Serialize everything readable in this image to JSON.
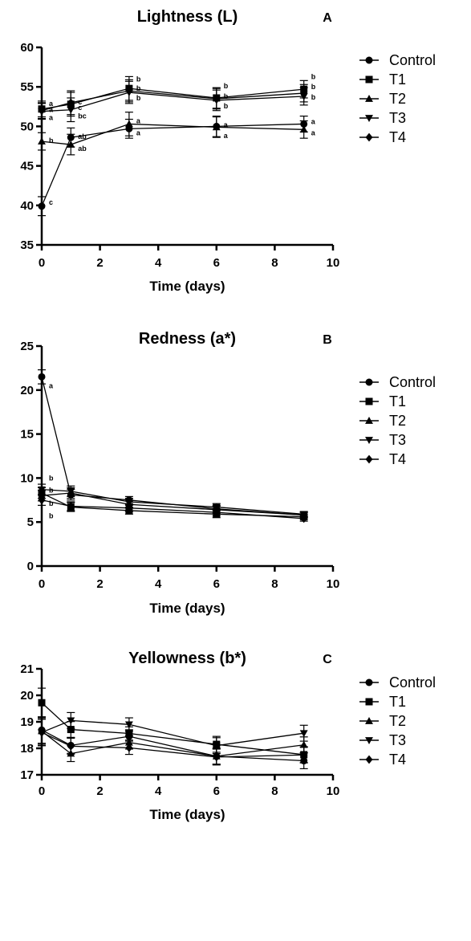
{
  "chart_data": [
    {
      "type": "line",
      "panel": "A",
      "title": "Lightness (L)",
      "xlabel": "Time (days)",
      "ylabel": "",
      "xlim": [
        0,
        10
      ],
      "ylim": [
        35,
        60
      ],
      "xticks": [
        0,
        2,
        4,
        6,
        8,
        10
      ],
      "yticks": [
        35,
        40,
        45,
        50,
        55,
        60
      ],
      "grid": false,
      "legend_position": "right",
      "x": [
        0,
        1,
        3,
        6,
        9
      ],
      "series": [
        {
          "name": "Control",
          "marker": "circle",
          "values": [
            39.9,
            48.6,
            49.7,
            50.0,
            50.3
          ],
          "errors": [
            1.2,
            1.2,
            1.2,
            1.3,
            1.0
          ]
        },
        {
          "name": "T1",
          "marker": "square",
          "values": [
            52.2,
            52.8,
            54.8,
            53.6,
            54.7
          ],
          "errors": [
            1.0,
            1.5,
            1.5,
            1.3,
            1.1
          ]
        },
        {
          "name": "T2",
          "marker": "triangle-up",
          "values": [
            48.1,
            47.7,
            50.3,
            49.9,
            49.6
          ],
          "errors": [
            1.1,
            1.3,
            1.5,
            1.3,
            1.1
          ]
        },
        {
          "name": "T3",
          "marker": "triangle-down",
          "values": [
            51.9,
            52.1,
            54.3,
            53.3,
            53.8
          ],
          "errors": [
            1.0,
            1.5,
            1.4,
            1.3,
            1.1
          ]
        },
        {
          "name": "T4",
          "marker": "diamond",
          "values": [
            52.0,
            53.0,
            54.5,
            53.5,
            54.2
          ],
          "errors": [
            1.0,
            1.5,
            1.4,
            1.3,
            1.1
          ]
        }
      ],
      "annotations": [
        {
          "text": "a",
          "x": 0,
          "y": 52.9
        },
        {
          "text": "a",
          "x": 0,
          "y": 52.1
        },
        {
          "text": "a",
          "x": 0,
          "y": 51.1
        },
        {
          "text": "b",
          "x": 0,
          "y": 48.2
        },
        {
          "text": "c",
          "x": 0,
          "y": 40.4
        },
        {
          "text": "c",
          "x": 1,
          "y": 53.1
        },
        {
          "text": "c",
          "x": 1,
          "y": 52.4
        },
        {
          "text": "bc",
          "x": 1,
          "y": 51.3
        },
        {
          "text": "ab",
          "x": 1,
          "y": 48.7
        },
        {
          "text": "ab",
          "x": 1,
          "y": 47.2
        },
        {
          "text": "b",
          "x": 3,
          "y": 56.0
        },
        {
          "text": "b",
          "x": 3,
          "y": 54.8
        },
        {
          "text": "b",
          "x": 3,
          "y": 53.6
        },
        {
          "text": "a",
          "x": 3,
          "y": 50.7
        },
        {
          "text": "a",
          "x": 3,
          "y": 49.2
        },
        {
          "text": "b",
          "x": 6,
          "y": 55.1
        },
        {
          "text": "b",
          "x": 6,
          "y": 53.8
        },
        {
          "text": "b",
          "x": 6,
          "y": 52.6
        },
        {
          "text": "a",
          "x": 6,
          "y": 50.2
        },
        {
          "text": "a",
          "x": 6,
          "y": 48.8
        },
        {
          "text": "b",
          "x": 9,
          "y": 56.3
        },
        {
          "text": "b",
          "x": 9,
          "y": 55.0
        },
        {
          "text": "b",
          "x": 9,
          "y": 53.7
        },
        {
          "text": "a",
          "x": 9,
          "y": 50.6
        },
        {
          "text": "a",
          "x": 9,
          "y": 49.2
        }
      ]
    },
    {
      "type": "line",
      "panel": "B",
      "title": "Redness (a*)",
      "xlabel": "Time (days)",
      "ylabel": "",
      "xlim": [
        0,
        10
      ],
      "ylim": [
        0,
        25
      ],
      "xticks": [
        0,
        2,
        4,
        6,
        8,
        10
      ],
      "yticks": [
        0,
        5,
        10,
        15,
        20,
        25
      ],
      "grid": false,
      "legend_position": "right",
      "x": [
        0,
        1,
        3,
        6,
        9
      ],
      "series": [
        {
          "name": "Control",
          "marker": "circle",
          "values": [
            21.5,
            8.1,
            7.5,
            6.5,
            5.8
          ],
          "errors": [
            0.8,
            0.6,
            0.4,
            0.4,
            0.3
          ]
        },
        {
          "name": "T1",
          "marker": "square",
          "values": [
            8.3,
            6.7,
            6.3,
            5.9,
            5.6
          ],
          "errors": [
            0.6,
            0.5,
            0.4,
            0.4,
            0.3
          ]
        },
        {
          "name": "T2",
          "marker": "triangle-up",
          "values": [
            8.0,
            8.3,
            7.0,
            6.4,
            5.8
          ],
          "errors": [
            0.6,
            0.6,
            0.4,
            0.4,
            0.3
          ]
        },
        {
          "name": "T3",
          "marker": "triangle-down",
          "values": [
            8.7,
            8.5,
            7.3,
            6.7,
            5.9
          ],
          "errors": [
            0.6,
            0.6,
            0.4,
            0.4,
            0.3
          ]
        },
        {
          "name": "T4",
          "marker": "diamond",
          "values": [
            7.5,
            6.8,
            6.6,
            6.1,
            5.4
          ],
          "errors": [
            0.6,
            0.5,
            0.4,
            0.4,
            0.3
          ]
        }
      ],
      "annotations": [
        {
          "text": "a",
          "x": 0,
          "y": 20.5
        },
        {
          "text": "b",
          "x": 0,
          "y": 10.0
        },
        {
          "text": "b",
          "x": 0,
          "y": 8.6
        },
        {
          "text": "b",
          "x": 0,
          "y": 7.1
        },
        {
          "text": "b",
          "x": 0,
          "y": 5.7
        }
      ]
    },
    {
      "type": "line",
      "panel": "C",
      "title": "Yellowness (b*)",
      "xlabel": "Time (days)",
      "ylabel": "",
      "xlim": [
        0,
        10
      ],
      "ylim": [
        17,
        21
      ],
      "xticks": [
        0,
        2,
        4,
        6,
        8,
        10
      ],
      "yticks": [
        17,
        18,
        19,
        20,
        21
      ],
      "grid": false,
      "legend_position": "right",
      "x": [
        0,
        1,
        3,
        6,
        9
      ],
      "series": [
        {
          "name": "Control",
          "marker": "circle",
          "values": [
            18.69,
            18.11,
            18.45,
            17.7,
            17.53
          ],
          "errors": [
            0.5,
            0.3,
            0.25,
            0.3,
            0.3
          ]
        },
        {
          "name": "T1",
          "marker": "square",
          "values": [
            19.72,
            18.71,
            18.56,
            18.15,
            17.76
          ],
          "errors": [
            0.55,
            0.3,
            0.25,
            0.3,
            0.3
          ]
        },
        {
          "name": "T2",
          "marker": "triangle-up",
          "values": [
            18.65,
            17.8,
            18.22,
            17.7,
            18.13
          ],
          "errors": [
            0.5,
            0.3,
            0.25,
            0.3,
            0.3
          ]
        },
        {
          "name": "T3",
          "marker": "triangle-down",
          "values": [
            18.6,
            19.05,
            18.9,
            18.1,
            18.57
          ],
          "errors": [
            0.5,
            0.3,
            0.25,
            0.3,
            0.3
          ]
        },
        {
          "name": "T4",
          "marker": "diamond",
          "values": [
            18.6,
            18.08,
            18.02,
            17.67,
            17.75
          ],
          "errors": [
            0.5,
            0.3,
            0.25,
            0.3,
            0.3
          ]
        }
      ],
      "annotations": []
    }
  ]
}
